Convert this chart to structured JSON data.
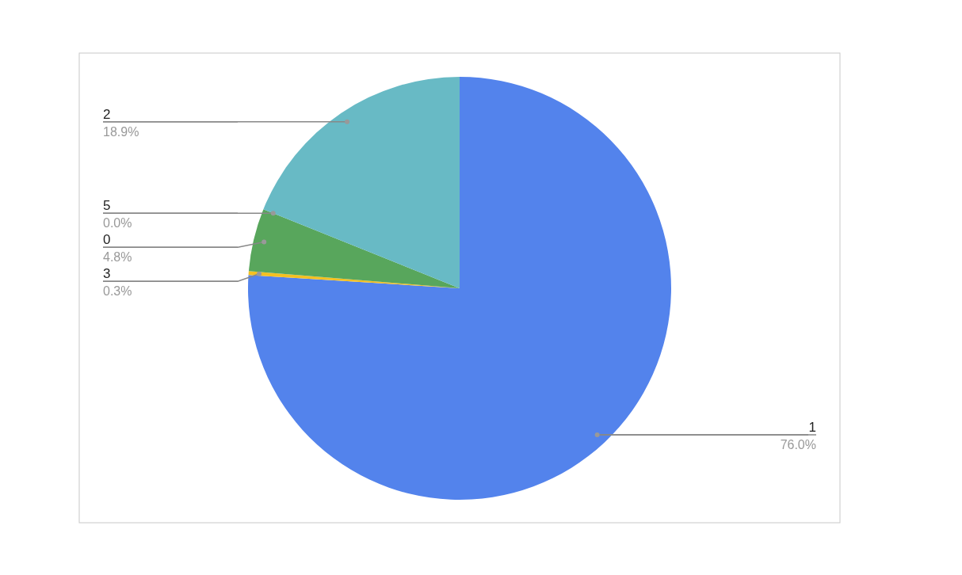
{
  "chart_data": {
    "type": "pie",
    "categories": [
      "1",
      "3",
      "0",
      "5",
      "2"
    ],
    "values": [
      76.0,
      0.3,
      4.8,
      0.0,
      18.9
    ],
    "colors": [
      "#5383ec",
      "#f4c021",
      "#58a65c",
      "#ff6d01",
      "#68bac5"
    ],
    "value_labels": [
      "76.0%",
      "0.3%",
      "4.8%",
      "0.0%",
      "18.9%"
    ],
    "legend": false
  }
}
